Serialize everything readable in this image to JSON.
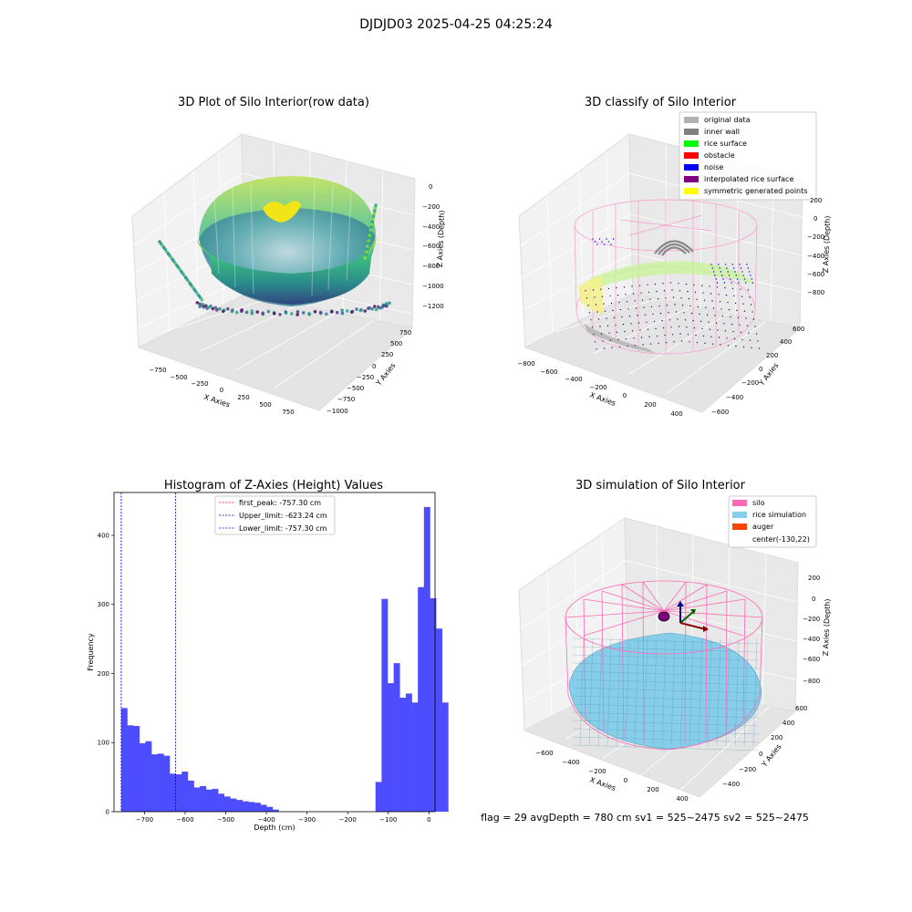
{
  "suptitle": "DJDJD03 2025-04-25 04:25:24",
  "footer": "flag = 29  avgDepth = 780 cm  sv1 = 525~2475  sv2 = 525~2475",
  "colors": {
    "histogram_bar": "#4d4dff",
    "silo": "#ff69b4",
    "rice_simulation": "#87ceeb",
    "auger": "#ff4500"
  },
  "chart_data": [
    {
      "type": "scatter3d",
      "title": "3D Plot of Silo Interior(row data)",
      "xlabel": "X Axies",
      "ylabel": "Y Axies",
      "zlabel": "Z Axies (Depth)",
      "x_ticks": [
        "−750",
        "−500",
        "−250",
        "0",
        "250",
        "500",
        "750"
      ],
      "y_ticks": [
        "−1000",
        "−750",
        "−500",
        "−250",
        "0",
        "250",
        "500",
        "750"
      ],
      "z_ticks": [
        "−1200",
        "−1000",
        "−800",
        "−600",
        "−400",
        "−200",
        "0"
      ],
      "colormap": "viridis"
    },
    {
      "type": "scatter3d",
      "title": "3D classify of Silo Interior",
      "xlabel": "X Axies",
      "ylabel": "Y Axies",
      "zlabel": "Z Axies (Depth)",
      "x_ticks": [
        "−800",
        "−600",
        "−400",
        "−200",
        "0",
        "200",
        "400"
      ],
      "y_ticks": [
        "−600",
        "−400",
        "−200",
        "0",
        "200",
        "400",
        "600"
      ],
      "z_ticks": [
        "−800",
        "−600",
        "−400",
        "−200",
        "0",
        "200"
      ],
      "legend_position": "top-right",
      "legend": [
        {
          "label": "original data",
          "color": "#b0b0b0"
        },
        {
          "label": "inner wall",
          "color": "#808080"
        },
        {
          "label": "rice surface",
          "color": "#00ff00"
        },
        {
          "label": "obstacle",
          "color": "#ff0000"
        },
        {
          "label": "noise",
          "color": "#0000ff"
        },
        {
          "label": "interpolated rice surface",
          "color": "#800080"
        },
        {
          "label": "symmetric generated points",
          "color": "#ffff00"
        }
      ]
    },
    {
      "type": "bar",
      "title": "Histogram of Z-Axies (Height) Values",
      "xlabel": "Depth (cm)",
      "ylabel": "Frequency",
      "xlim": [
        -775,
        15
      ],
      "ylim": [
        0,
        462
      ],
      "x_ticks": [
        -700,
        -600,
        -500,
        -400,
        -300,
        -200,
        -100,
        0
      ],
      "y_ticks": [
        0,
        100,
        200,
        300,
        400
      ],
      "bin_start": -757.3,
      "bin_width": 14.9,
      "values": [
        150,
        125,
        124,
        99,
        102,
        83,
        84,
        81,
        55,
        54,
        58,
        45,
        35,
        37,
        32,
        33,
        26,
        22,
        19,
        17,
        15,
        14,
        13,
        10,
        7,
        3,
        0,
        0,
        0,
        0,
        0,
        0,
        0,
        0,
        0,
        0,
        0,
        0,
        0,
        0,
        0,
        0,
        43,
        308,
        186,
        215,
        165,
        171,
        158,
        325,
        441,
        309,
        265,
        158
      ],
      "vlines": [
        {
          "label": "first_peak: -757.30 cm",
          "x": -757.3,
          "color": "#ff0000"
        },
        {
          "label": "Upper_limit: -623.24 cm",
          "x": -623.24,
          "color": "#00008b"
        },
        {
          "label": "Lower_limit: -757.30 cm",
          "x": -757.3,
          "color": "#0000ff"
        }
      ],
      "legend_position": "top-center"
    },
    {
      "type": "surface3d",
      "title": "3D simulation of Silo Interior",
      "xlabel": "X Axies",
      "ylabel": "Y Axies",
      "zlabel": "Z Axies (Depth)",
      "x_ticks": [
        "−600",
        "−400",
        "−200",
        "0",
        "200",
        "400"
      ],
      "y_ticks": [
        "−400",
        "−200",
        "0",
        "200",
        "400",
        "600"
      ],
      "z_ticks": [
        "−800",
        "−600",
        "−400",
        "−200",
        "0",
        "200"
      ],
      "legend_position": "top-right",
      "legend": [
        {
          "label": "silo",
          "color": "#ff69b4"
        },
        {
          "label": "rice simulation",
          "color": "#87ceeb"
        },
        {
          "label": "auger",
          "color": "#ff4500"
        },
        {
          "label": "center(-130,22)",
          "color": ""
        }
      ]
    }
  ]
}
